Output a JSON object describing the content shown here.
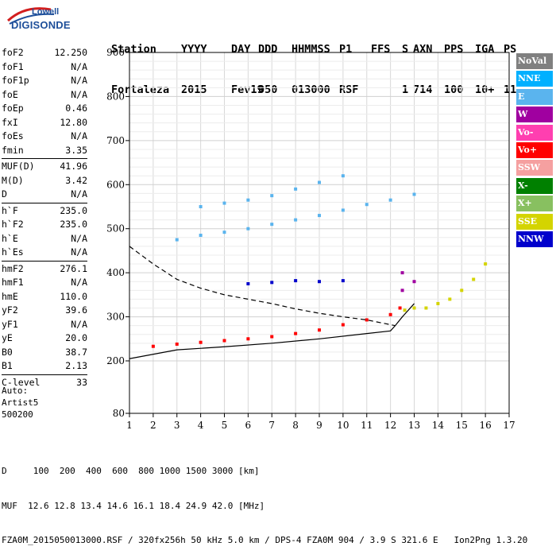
{
  "logo": {
    "line1": "Lowell",
    "line2": "DIGISONDE"
  },
  "header": {
    "columns": [
      "Station",
      "YYYY",
      "DAY",
      "DDD",
      "HHMMSS",
      "P1",
      "FFS",
      "S",
      "AXN",
      "PPS",
      "IGA",
      "PS"
    ],
    "values": [
      "Fortaleza",
      "2015",
      "Fev19",
      "050",
      "013000",
      "RSF",
      "",
      "1",
      "714",
      "100",
      "10+",
      "11"
    ]
  },
  "params": [
    [
      {
        "name": "foF2",
        "value": "12.250"
      },
      {
        "name": "foF1",
        "value": "N/A"
      },
      {
        "name": "foF1p",
        "value": "N/A"
      },
      {
        "name": "foE",
        "value": "N/A"
      },
      {
        "name": "foEp",
        "value": "0.46"
      },
      {
        "name": "fxI",
        "value": "12.80"
      },
      {
        "name": "foEs",
        "value": "N/A"
      },
      {
        "name": "fmin",
        "value": "3.35"
      }
    ],
    [
      {
        "name": "MUF(D)",
        "value": "41.96"
      },
      {
        "name": "M(D)",
        "value": "3.42"
      },
      {
        "name": "D",
        "value": "N/A"
      }
    ],
    [
      {
        "name": "h`F",
        "value": "235.0"
      },
      {
        "name": "h`F2",
        "value": "235.0"
      },
      {
        "name": "h`E",
        "value": "N/A"
      },
      {
        "name": "h`Es",
        "value": "N/A"
      }
    ],
    [
      {
        "name": "hmF2",
        "value": "276.1"
      },
      {
        "name": "hmF1",
        "value": "N/A"
      },
      {
        "name": "hmE",
        "value": "110.0"
      },
      {
        "name": "yF2",
        "value": "39.6"
      },
      {
        "name": "yF1",
        "value": "N/A"
      },
      {
        "name": "yE",
        "value": "20.0"
      },
      {
        "name": "B0",
        "value": "38.7"
      },
      {
        "name": "B1",
        "value": "2.13"
      }
    ],
    [
      {
        "name": "C-level",
        "value": "33"
      }
    ]
  ],
  "autoscale": {
    "line1": "Auto:",
    "line2": "Artist5",
    "line3": "500200"
  },
  "legend": [
    {
      "label": "NoVal",
      "color": "#808080"
    },
    {
      "label": "NNE",
      "color": "#00b0ff"
    },
    {
      "label": "E",
      "color": "#5ab4ee"
    },
    {
      "label": "W",
      "color": "#a000a0"
    },
    {
      "label": "Vo-",
      "color": "#ff3fb0"
    },
    {
      "label": "Vo+",
      "color": "#ff0000"
    },
    {
      "label": "SSW",
      "color": "#f5a0a0"
    },
    {
      "label": "X-",
      "color": "#008000"
    },
    {
      "label": "X+",
      "color": "#88c060"
    },
    {
      "label": "SSE",
      "color": "#d4d400"
    },
    {
      "label": "NNW",
      "color": "#0000cc"
    }
  ],
  "footer": {
    "line1": "D     100  200  400  600  800 1000 1500 3000 [km]",
    "line2": "MUF  12.6 12.8 13.4 14.6 16.1 18.4 24.9 42.0 [MHz]",
    "line3": "FZA0M_2015050013000.RSF / 320fx256h 50 kHz 5.0 km / DPS-4 FZA0M 904 / 3.9 S 321.6 E   Ion2Png 1.3.20"
  },
  "chart_data": {
    "type": "scatter",
    "x_ticks": [
      1,
      2,
      3,
      4,
      5,
      6,
      7,
      8,
      9,
      10,
      11,
      12,
      13,
      14,
      15,
      16,
      17
    ],
    "y_ticks": [
      80,
      200,
      300,
      400,
      500,
      600,
      700,
      800,
      900
    ],
    "xlim": [
      1,
      17
    ],
    "ylim": [
      80,
      900
    ],
    "grid": true,
    "legend_position": "right",
    "series": [
      {
        "color": "#ff0000",
        "points": [
          [
            2.0,
            233
          ],
          [
            3.0,
            238
          ],
          [
            4.0,
            242
          ],
          [
            5.0,
            246
          ],
          [
            6.0,
            250
          ],
          [
            7.0,
            255
          ],
          [
            8.0,
            262
          ],
          [
            9.0,
            270
          ],
          [
            10.0,
            282
          ],
          [
            11.0,
            293
          ],
          [
            12.0,
            305
          ],
          [
            12.4,
            320
          ]
        ]
      },
      {
        "color": "#d4d400",
        "points": [
          [
            12.6,
            315
          ],
          [
            13.0,
            320
          ],
          [
            13.5,
            320
          ],
          [
            14.0,
            330
          ],
          [
            14.5,
            340
          ],
          [
            15.0,
            360
          ],
          [
            15.5,
            385
          ],
          [
            16.0,
            420
          ]
        ]
      },
      {
        "color": "#5ab4ee",
        "points": [
          [
            3.0,
            475
          ],
          [
            4.0,
            485
          ],
          [
            5.0,
            492
          ],
          [
            6.0,
            500
          ],
          [
            7.0,
            510
          ],
          [
            8.0,
            520
          ],
          [
            9.0,
            530
          ],
          [
            10.0,
            542
          ],
          [
            11.0,
            555
          ],
          [
            12.0,
            565
          ],
          [
            13.0,
            578
          ]
        ]
      },
      {
        "color": "#5ab4ee",
        "points": [
          [
            4.0,
            550
          ],
          [
            5.0,
            558
          ],
          [
            6.0,
            565
          ],
          [
            7.0,
            575
          ],
          [
            8.0,
            590
          ],
          [
            9.0,
            605
          ],
          [
            10.0,
            620
          ]
        ]
      },
      {
        "color": "#0000cc",
        "points": [
          [
            6.0,
            375
          ],
          [
            7.0,
            378
          ],
          [
            8.0,
            382
          ],
          [
            9.0,
            380
          ],
          [
            10.0,
            382
          ]
        ]
      },
      {
        "color": "#a000a0",
        "points": [
          [
            12.5,
            360
          ],
          [
            13.0,
            380
          ],
          [
            12.5,
            400
          ]
        ]
      }
    ],
    "profile_line": [
      [
        1.0,
        205
      ],
      [
        3.0,
        225
      ],
      [
        5.0,
        232
      ],
      [
        7.0,
        240
      ],
      [
        9.0,
        250
      ],
      [
        11.0,
        262
      ],
      [
        12.0,
        268
      ],
      [
        12.2,
        280
      ],
      [
        12.5,
        300
      ],
      [
        13.0,
        330
      ]
    ],
    "dashed_line": [
      [
        1.0,
        460
      ],
      [
        2.0,
        420
      ],
      [
        3.0,
        385
      ],
      [
        4.0,
        365
      ],
      [
        5.0,
        350
      ],
      [
        6.0,
        340
      ],
      [
        7.0,
        330
      ],
      [
        8.0,
        318
      ],
      [
        9.0,
        308
      ],
      [
        10.0,
        300
      ],
      [
        11.0,
        293
      ],
      [
        12.2,
        280
      ]
    ]
  }
}
